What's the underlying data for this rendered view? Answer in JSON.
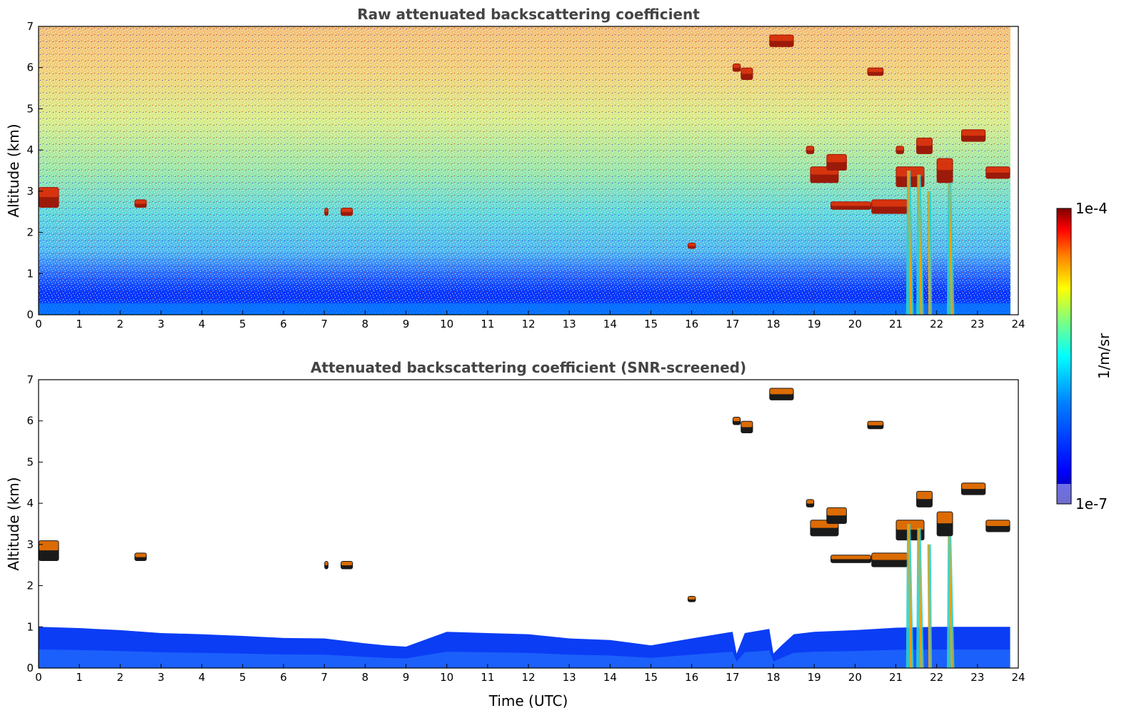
{
  "chart_data": [
    {
      "type": "heatmap",
      "title": "Raw attenuated backscattering coefficient",
      "xlabel": "",
      "ylabel": "Altitude (km)",
      "xlim": [
        0,
        24
      ],
      "ylim": [
        0,
        7
      ],
      "x_ticks": [
        "0",
        "1",
        "2",
        "3",
        "4",
        "5",
        "6",
        "7",
        "8",
        "9",
        "10",
        "11",
        "12",
        "13",
        "14",
        "15",
        "16",
        "17",
        "18",
        "19",
        "20",
        "21",
        "22",
        "23",
        "24"
      ],
      "y_ticks": [
        "0",
        "1",
        "2",
        "3",
        "4",
        "5",
        "6",
        "7"
      ],
      "data_extent_time": [
        0,
        23.8
      ],
      "boundary_layer_top_km": 1.0,
      "features": [
        {
          "kind": "cloud",
          "time": [
            0.0,
            0.5
          ],
          "alt": [
            2.6,
            3.1
          ]
        },
        {
          "kind": "cloud",
          "time": [
            2.35,
            2.65
          ],
          "alt": [
            2.6,
            2.8
          ]
        },
        {
          "kind": "cloud",
          "time": [
            7.0,
            7.1
          ],
          "alt": [
            2.4,
            2.6
          ]
        },
        {
          "kind": "cloud",
          "time": [
            7.4,
            7.7
          ],
          "alt": [
            2.4,
            2.6
          ]
        },
        {
          "kind": "cloud",
          "time": [
            15.9,
            16.1
          ],
          "alt": [
            1.6,
            1.75
          ]
        },
        {
          "kind": "cloud",
          "time": [
            17.0,
            17.2
          ],
          "alt": [
            5.9,
            6.1
          ]
        },
        {
          "kind": "cloud",
          "time": [
            17.2,
            17.5
          ],
          "alt": [
            5.7,
            6.0
          ]
        },
        {
          "kind": "cloud",
          "time": [
            17.9,
            18.5
          ],
          "alt": [
            6.5,
            6.8
          ]
        },
        {
          "kind": "cloud",
          "time": [
            18.8,
            19.0
          ],
          "alt": [
            3.9,
            4.1
          ]
        },
        {
          "kind": "cloud",
          "time": [
            18.9,
            19.6
          ],
          "alt": [
            3.2,
            3.6
          ]
        },
        {
          "kind": "cloud",
          "time": [
            19.3,
            19.8
          ],
          "alt": [
            3.5,
            3.9
          ]
        },
        {
          "kind": "cloud",
          "time": [
            19.4,
            20.4
          ],
          "alt": [
            2.55,
            2.75
          ]
        },
        {
          "kind": "cloud",
          "time": [
            20.3,
            20.7
          ],
          "alt": [
            5.8,
            6.0
          ]
        },
        {
          "kind": "cloud",
          "time": [
            20.4,
            21.3
          ],
          "alt": [
            2.45,
            2.8
          ]
        },
        {
          "kind": "cloud",
          "time": [
            21.0,
            21.7
          ],
          "alt": [
            3.1,
            3.6
          ]
        },
        {
          "kind": "cloud",
          "time": [
            21.0,
            21.2
          ],
          "alt": [
            3.9,
            4.1
          ]
        },
        {
          "kind": "cloud",
          "time": [
            21.5,
            21.9
          ],
          "alt": [
            3.9,
            4.3
          ]
        },
        {
          "kind": "cloud",
          "time": [
            22.0,
            22.4
          ],
          "alt": [
            3.2,
            3.8
          ]
        },
        {
          "kind": "cloud",
          "time": [
            22.6,
            23.2
          ],
          "alt": [
            4.2,
            4.5
          ]
        },
        {
          "kind": "cloud",
          "time": [
            23.2,
            23.8
          ],
          "alt": [
            3.3,
            3.6
          ]
        },
        {
          "kind": "precipitation",
          "time": [
            21.25,
            21.4
          ],
          "alt": [
            0,
            3.5
          ]
        },
        {
          "kind": "precipitation",
          "time": [
            21.5,
            21.65
          ],
          "alt": [
            0,
            3.4
          ]
        },
        {
          "kind": "precipitation",
          "time": [
            21.8,
            21.85
          ],
          "alt": [
            0,
            3.0
          ]
        },
        {
          "kind": "precipitation",
          "time": [
            22.25,
            22.4
          ],
          "alt": [
            0,
            3.2
          ]
        }
      ]
    },
    {
      "type": "heatmap",
      "title": "Attenuated backscattering coefficient (SNR-screened)",
      "xlabel": "Time (UTC)",
      "ylabel": "Altitude (km)",
      "xlim": [
        0,
        24
      ],
      "ylim": [
        0,
        7
      ],
      "x_ticks": [
        "0",
        "1",
        "2",
        "3",
        "4",
        "5",
        "6",
        "7",
        "8",
        "9",
        "10",
        "11",
        "12",
        "13",
        "14",
        "15",
        "16",
        "17",
        "18",
        "19",
        "20",
        "21",
        "22",
        "23",
        "24"
      ],
      "y_ticks": [
        "0",
        "1",
        "2",
        "3",
        "4",
        "5",
        "6",
        "7"
      ],
      "data_extent_time": [
        0,
        23.8
      ],
      "boundary_layer_top_profile": [
        [
          0,
          1.0
        ],
        [
          1,
          0.97
        ],
        [
          2,
          0.92
        ],
        [
          3,
          0.85
        ],
        [
          4,
          0.82
        ],
        [
          5,
          0.78
        ],
        [
          6,
          0.73
        ],
        [
          7,
          0.72
        ],
        [
          8,
          0.6
        ],
        [
          8.5,
          0.55
        ],
        [
          9,
          0.52
        ],
        [
          9.5,
          0.7
        ],
        [
          10,
          0.88
        ],
        [
          11,
          0.85
        ],
        [
          12,
          0.82
        ],
        [
          13,
          0.72
        ],
        [
          14,
          0.68
        ],
        [
          15,
          0.55
        ],
        [
          16,
          0.72
        ],
        [
          17,
          0.88
        ],
        [
          17.1,
          0.35
        ],
        [
          17.3,
          0.85
        ],
        [
          17.9,
          0.95
        ],
        [
          18.0,
          0.35
        ],
        [
          18.2,
          0.55
        ],
        [
          18.5,
          0.82
        ],
        [
          19,
          0.88
        ],
        [
          20,
          0.92
        ],
        [
          21,
          0.98
        ],
        [
          22,
          1.0
        ],
        [
          23,
          1.0
        ],
        [
          23.8,
          1.0
        ]
      ],
      "features": [
        {
          "kind": "cloud",
          "time": [
            0.0,
            0.5
          ],
          "alt": [
            2.6,
            3.1
          ]
        },
        {
          "kind": "cloud",
          "time": [
            2.35,
            2.65
          ],
          "alt": [
            2.6,
            2.8
          ]
        },
        {
          "kind": "cloud",
          "time": [
            7.0,
            7.1
          ],
          "alt": [
            2.4,
            2.6
          ]
        },
        {
          "kind": "cloud",
          "time": [
            7.4,
            7.7
          ],
          "alt": [
            2.4,
            2.6
          ]
        },
        {
          "kind": "cloud",
          "time": [
            15.9,
            16.1
          ],
          "alt": [
            1.6,
            1.75
          ]
        },
        {
          "kind": "cloud",
          "time": [
            17.0,
            17.2
          ],
          "alt": [
            5.9,
            6.1
          ]
        },
        {
          "kind": "cloud",
          "time": [
            17.2,
            17.5
          ],
          "alt": [
            5.7,
            6.0
          ]
        },
        {
          "kind": "cloud",
          "time": [
            17.9,
            18.5
          ],
          "alt": [
            6.5,
            6.8
          ]
        },
        {
          "kind": "cloud",
          "time": [
            18.8,
            19.0
          ],
          "alt": [
            3.9,
            4.1
          ]
        },
        {
          "kind": "cloud",
          "time": [
            18.9,
            19.6
          ],
          "alt": [
            3.2,
            3.6
          ]
        },
        {
          "kind": "cloud",
          "time": [
            19.3,
            19.8
          ],
          "alt": [
            3.5,
            3.9
          ]
        },
        {
          "kind": "cloud",
          "time": [
            19.4,
            20.4
          ],
          "alt": [
            2.55,
            2.75
          ]
        },
        {
          "kind": "cloud",
          "time": [
            20.3,
            20.7
          ],
          "alt": [
            5.8,
            6.0
          ]
        },
        {
          "kind": "cloud",
          "time": [
            20.4,
            21.3
          ],
          "alt": [
            2.45,
            2.8
          ]
        },
        {
          "kind": "cloud",
          "time": [
            21.0,
            21.7
          ],
          "alt": [
            3.1,
            3.6
          ]
        },
        {
          "kind": "cloud",
          "time": [
            21.5,
            21.9
          ],
          "alt": [
            3.9,
            4.3
          ]
        },
        {
          "kind": "cloud",
          "time": [
            22.0,
            22.4
          ],
          "alt": [
            3.2,
            3.8
          ]
        },
        {
          "kind": "cloud",
          "time": [
            22.6,
            23.2
          ],
          "alt": [
            4.2,
            4.5
          ]
        },
        {
          "kind": "cloud",
          "time": [
            23.2,
            23.8
          ],
          "alt": [
            3.3,
            3.6
          ]
        },
        {
          "kind": "precipitation",
          "time": [
            21.25,
            21.4
          ],
          "alt": [
            0,
            3.5
          ]
        },
        {
          "kind": "precipitation",
          "time": [
            21.5,
            21.65
          ],
          "alt": [
            0,
            3.4
          ]
        },
        {
          "kind": "precipitation",
          "time": [
            21.8,
            21.85
          ],
          "alt": [
            0,
            3.0
          ]
        },
        {
          "kind": "precipitation",
          "time": [
            22.25,
            22.4
          ],
          "alt": [
            0,
            3.2
          ]
        }
      ]
    }
  ],
  "colorbar": {
    "label": "1/m/sr",
    "max_label": "1e-4",
    "min_label": "1e-7",
    "colors": [
      "#00007f",
      "#0000ff",
      "#007fff",
      "#00ffff",
      "#7fff7f",
      "#ffff00",
      "#ff7f00",
      "#ff0000",
      "#7f0000"
    ]
  }
}
